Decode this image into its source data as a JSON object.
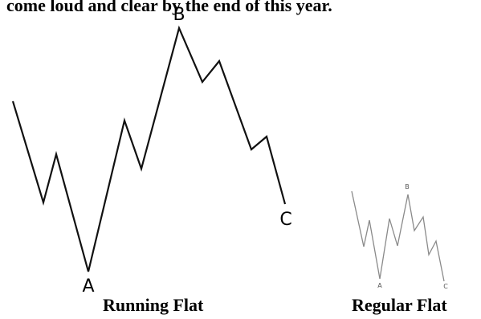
{
  "header_text": "come loud and clear by the end of this year.",
  "diagrams": {
    "running": {
      "caption": "Running Flat",
      "labels": {
        "a": "A",
        "b": "B",
        "c": "C"
      }
    },
    "regular": {
      "caption": "Regular Flat",
      "labels": {
        "a": "A",
        "b": "B",
        "c": "C"
      }
    }
  },
  "colors": {
    "running_line": "#111111",
    "regular_line": "#8a8a8a"
  }
}
